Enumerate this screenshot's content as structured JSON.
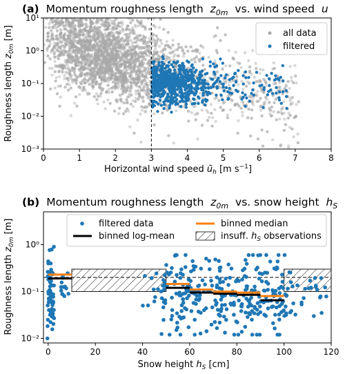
{
  "figure": {
    "panel_a": {
      "title_prefix": "(a)",
      "title_text": "Momentum roughness length",
      "title_var": "z",
      "title_var_sub": "0m",
      "title_mid": "vs. wind speed",
      "title_var2": "u"
    },
    "panel_b": {
      "title_prefix": "(b)",
      "title_text": "Momentum roughness length",
      "title_var": "z",
      "title_var_sub": "0m",
      "title_mid": "vs. snow height",
      "title_var2": "h",
      "title_var2_sub": "S"
    }
  },
  "chart_data": [
    {
      "type": "scatter",
      "xlabel": "Horizontal wind speed ū_h [m s⁻¹]",
      "ylabel": "Roughness length z_0m [m]",
      "xlim": [
        0,
        8
      ],
      "ylim": [
        0.001,
        10
      ],
      "yscale": "log",
      "x_ticks": [
        "0",
        "1",
        "2",
        "3",
        "4",
        "5",
        "6",
        "7",
        "8"
      ],
      "y_ticks": [
        "10⁻³",
        "10⁻²",
        "10⁻¹",
        "10⁰",
        "10¹"
      ],
      "threshold_x": 3,
      "legend_position": "top-right",
      "grid": false,
      "series": [
        {
          "name": "all data",
          "color": "#a9a9a9",
          "x_range": [
            0,
            7.1
          ],
          "y_range": [
            0.001,
            10
          ],
          "approx_count": 4000
        },
        {
          "name": "filtered",
          "color": "#1f77b4",
          "x_range": [
            3,
            7.0
          ],
          "y_range": [
            0.01,
            1.0
          ],
          "approx_count": 700
        }
      ]
    },
    {
      "type": "scatter",
      "xlabel": "Snow height h_S [cm]",
      "ylabel": "Roughness length z_0m [m]",
      "xlim": [
        -2,
        120
      ],
      "ylim": [
        0.008,
        5
      ],
      "yscale": "log",
      "x_ticks": [
        "0",
        "20",
        "40",
        "60",
        "80",
        "100",
        "120"
      ],
      "y_ticks": [
        "10⁻²",
        "10⁻¹",
        "10⁰"
      ],
      "reference_line_y": 0.2,
      "legend_position": "top",
      "grid": false,
      "series": [
        {
          "name": "filtered data",
          "color": "#1f77b4",
          "marker": "point"
        },
        {
          "name": "binned log-mean",
          "color": "#000000",
          "marker": "line",
          "bins": [
            [
              0,
              10,
              0.19
            ],
            [
              50,
              60,
              0.12
            ],
            [
              60,
              70,
              0.095
            ],
            [
              70,
              80,
              0.09
            ],
            [
              80,
              90,
              0.085
            ],
            [
              90,
              100,
              0.065
            ]
          ]
        },
        {
          "name": "binned median",
          "color": "#ff7f0e",
          "marker": "line",
          "bins": [
            [
              0,
              10,
              0.23
            ],
            [
              50,
              60,
              0.145
            ],
            [
              60,
              70,
              0.11
            ],
            [
              70,
              80,
              0.1
            ],
            [
              80,
              90,
              0.095
            ],
            [
              90,
              100,
              0.08
            ]
          ]
        },
        {
          "name": "insuff. h_S observations",
          "color": "#000000",
          "marker": "hatch",
          "regions": [
            [
              10,
              50,
              0.1,
              0.3
            ],
            [
              100,
              120,
              0.1,
              0.3
            ]
          ]
        }
      ],
      "clusters": [
        {
          "x_range": [
            -0.5,
            2.5
          ],
          "y_range": [
            0.01,
            0.9
          ],
          "count": 70
        },
        {
          "x_range": [
            5,
            9
          ],
          "y_range": [
            0.05,
            0.3
          ],
          "count": 14
        },
        {
          "x_range": [
            39,
            48
          ],
          "y_range": [
            0.05,
            0.3
          ],
          "count": 10
        },
        {
          "x_range": [
            48,
            101
          ],
          "y_range": [
            0.012,
            0.6
          ],
          "count": 300
        },
        {
          "x_range": [
            101,
            118
          ],
          "y_range": [
            0.03,
            0.3
          ],
          "count": 30
        }
      ]
    }
  ],
  "colors": {
    "gray": "#a9a9a9",
    "blue": "#1f77b4",
    "orange": "#ff7f0e",
    "black": "#000000"
  }
}
